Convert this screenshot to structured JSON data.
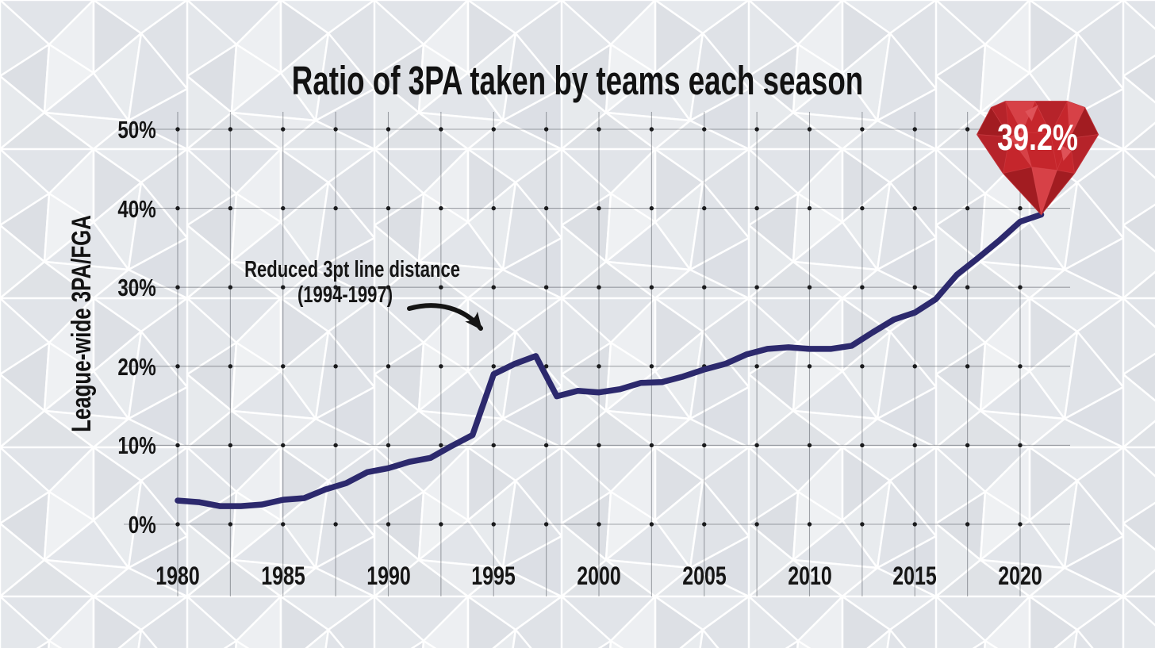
{
  "title": "Ratio of 3PA taken by teams each season",
  "y_axis": {
    "title": "League-wide 3PA/FGA",
    "tick_labels": [
      "0%",
      "10%",
      "20%",
      "30%",
      "40%",
      "50%"
    ]
  },
  "x_axis": {
    "tick_labels": [
      "1980",
      "1985",
      "1990",
      "1995",
      "2000",
      "2005",
      "2010",
      "2015",
      "2020"
    ]
  },
  "annotation": {
    "line1": "Reduced 3pt line distance",
    "line2": "(1994-1997)"
  },
  "badge": {
    "value": "39.2%"
  },
  "colors": {
    "background": "#e9ebee",
    "pattern_line": "#ffffff",
    "grid_line": "#3f434c",
    "grid_dot": "#191a1c",
    "line": "#2c296d",
    "text": "#141414",
    "gem_base": "#c5262c",
    "gem_dark": "#9e1b21",
    "gem_mid": "#b4232a",
    "gem_light": "#d8434a",
    "gem_lighter": "#e0565c",
    "badge_text": "#ffffff"
  },
  "chart_data": {
    "type": "line",
    "title": "Ratio of 3PA taken by teams each season",
    "xlabel": "",
    "ylabel": "League-wide 3PA/FGA",
    "x": [
      1980,
      1981,
      1982,
      1983,
      1984,
      1985,
      1986,
      1987,
      1988,
      1989,
      1990,
      1991,
      1992,
      1993,
      1994,
      1995,
      1996,
      1997,
      1998,
      1999,
      2000,
      2001,
      2002,
      2003,
      2004,
      2005,
      2006,
      2007,
      2008,
      2009,
      2010,
      2011,
      2012,
      2013,
      2014,
      2015,
      2016,
      2017,
      2018,
      2019,
      2020,
      2021
    ],
    "values": [
      3.0,
      2.8,
      2.3,
      2.3,
      2.5,
      3.1,
      3.3,
      4.4,
      5.2,
      6.6,
      7.1,
      7.9,
      8.4,
      9.9,
      11.3,
      19.0,
      20.3,
      21.3,
      16.2,
      16.9,
      16.7,
      17.1,
      17.9,
      18.0,
      18.7,
      19.6,
      20.3,
      21.5,
      22.2,
      22.4,
      22.2,
      22.2,
      22.6,
      24.3,
      25.9,
      26.8,
      28.5,
      31.6,
      33.7,
      35.9,
      38.3,
      39.2
    ],
    "x_ticks": [
      1980,
      1985,
      1990,
      1995,
      2000,
      2005,
      2010,
      2015,
      2020
    ],
    "y_ticks": [
      0,
      10,
      20,
      30,
      40,
      50
    ],
    "minor_x_grid_step_years": 2.5,
    "xlim": [
      1977.5,
      2024
    ],
    "ylim": [
      0,
      50
    ],
    "grid": true,
    "legend_position": "none",
    "annotations": [
      {
        "text": "Reduced 3pt line distance (1994-1997)",
        "arrow_points_to_x": 1995
      }
    ],
    "final_point_label": "39.2%"
  }
}
